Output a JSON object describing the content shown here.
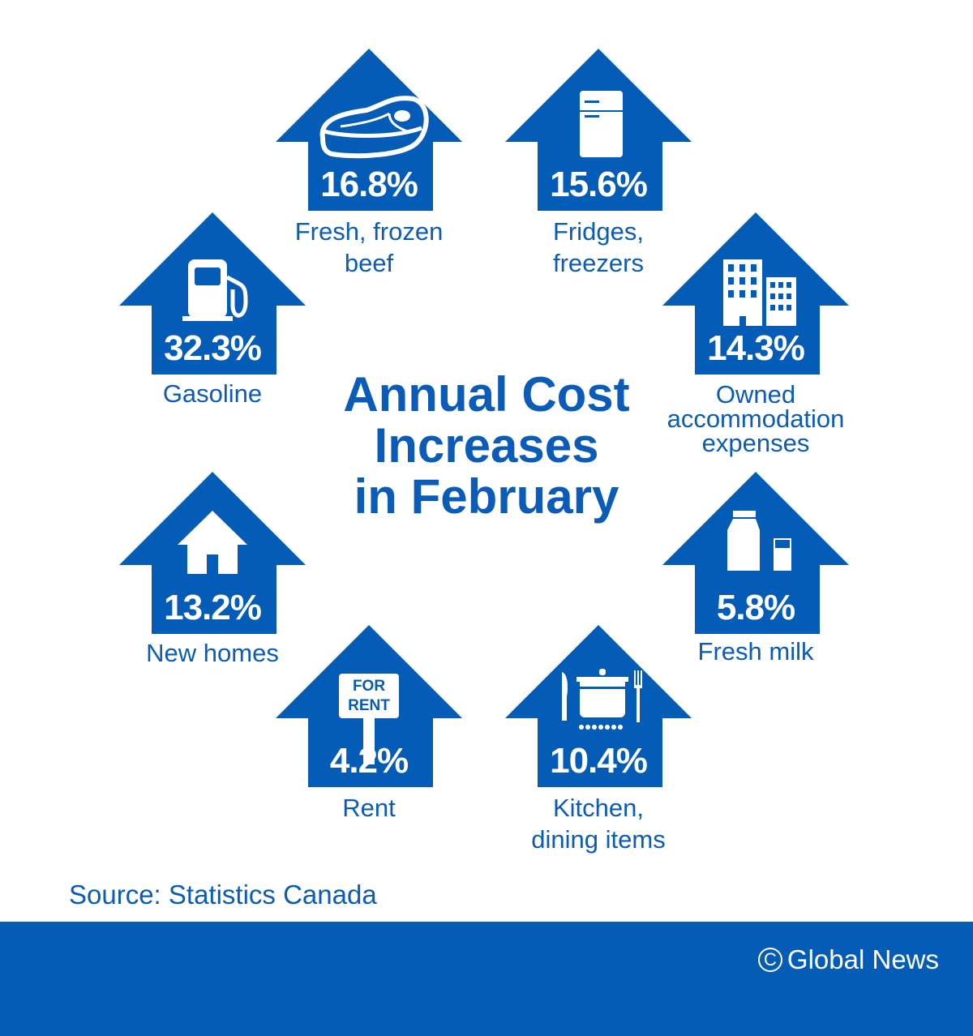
{
  "title": {
    "line1": "Annual Cost",
    "line2": "Increases",
    "line3": "in February"
  },
  "colors": {
    "brand_blue": "#055cb7",
    "background": "#ffffff",
    "text_on_blue": "#ffffff"
  },
  "items": [
    {
      "percent": "16.8%",
      "label_lines": [
        "Fresh, frozen",
        "beef"
      ],
      "icon": "steak-icon"
    },
    {
      "percent": "15.6%",
      "label_lines": [
        "Fridges,",
        "freezers"
      ],
      "icon": "fridge-icon"
    },
    {
      "percent": "32.3%",
      "label_lines": [
        "Gasoline"
      ],
      "icon": "gas-pump-icon"
    },
    {
      "percent": "14.3%",
      "label_lines": [
        "Owned",
        "accommodation",
        "expenses"
      ],
      "icon": "buildings-icon"
    },
    {
      "percent": "13.2%",
      "label_lines": [
        "New homes"
      ],
      "icon": "house-icon"
    },
    {
      "percent": "5.8%",
      "label_lines": [
        "Fresh milk"
      ],
      "icon": "milk-carton-icon",
      "icon_text": ""
    },
    {
      "percent": "4.2%",
      "label_lines": [
        "Rent"
      ],
      "icon": "for-rent-sign-icon",
      "sign_text": [
        "FOR",
        "RENT"
      ]
    },
    {
      "percent": "10.4%",
      "label_lines": [
        "Kitchen,",
        "dining items"
      ],
      "icon": "cooking-pot-icon"
    }
  ],
  "source": "Source: Statistics Canada",
  "footer": {
    "copyright_symbol": "C",
    "brand": "Global News"
  }
}
